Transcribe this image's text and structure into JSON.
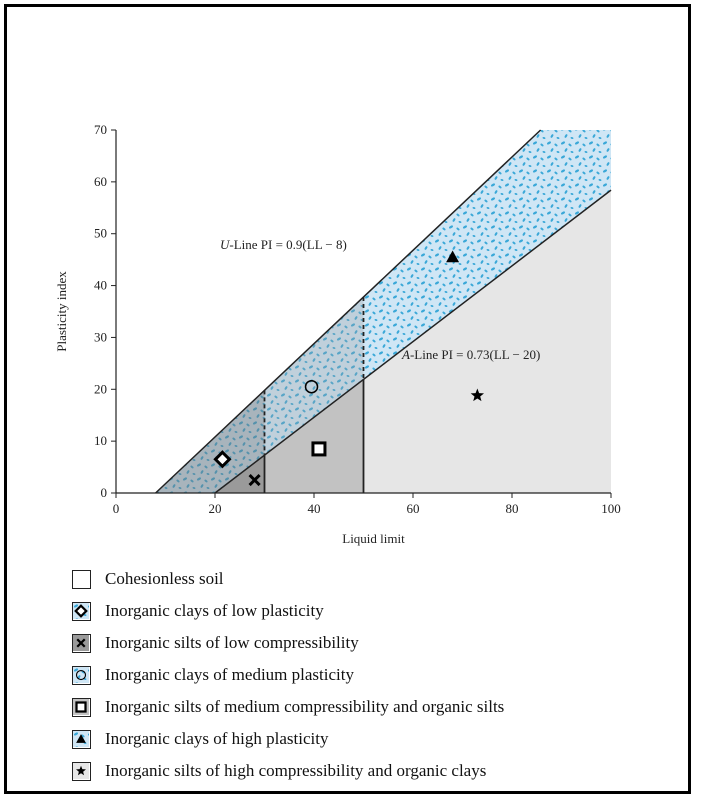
{
  "chart_data": {
    "type": "area",
    "title": "",
    "xlabel": "Liquid limit",
    "ylabel": "Plasticity index",
    "xlim": [
      0,
      100
    ],
    "ylim": [
      0,
      70
    ],
    "xticks": [
      0,
      20,
      40,
      60,
      80,
      100
    ],
    "yticks": [
      0,
      10,
      20,
      30,
      40,
      50,
      60,
      70
    ],
    "grid": false,
    "lines": [
      {
        "id": "u-line",
        "label_prefix": "U",
        "label_rest": "-Line PI = 0.9(LL − 8)",
        "slope": 0.9,
        "intercept_x": 8
      },
      {
        "id": "a-line",
        "label_prefix": "A",
        "label_rest": "-Line PI = 0.73(LL − 20)",
        "slope": 0.73,
        "intercept_x": 20
      }
    ],
    "vertical_lines": [
      30,
      50
    ],
    "regions_colors": {
      "clay_fill": "#cfe6f5",
      "clay_dots": "#3aa8d8",
      "silt_low_fill": "#9a9a9a",
      "silt_med_fill": "#c2c2c2",
      "silt_high_fill": "#e6e6e6"
    },
    "markers": [
      {
        "symbol": "diamond",
        "x": 21.5,
        "y": 6.5
      },
      {
        "symbol": "cross",
        "x": 28,
        "y": 2.5
      },
      {
        "symbol": "circle",
        "x": 39.5,
        "y": 20.5
      },
      {
        "symbol": "square",
        "x": 41,
        "y": 8.5
      },
      {
        "symbol": "triangle",
        "x": 68,
        "y": 45.5
      },
      {
        "symbol": "star",
        "x": 73,
        "y": 18.8
      }
    ]
  },
  "legend": [
    {
      "symbol": "none",
      "label": "Cohesionless soil",
      "swatch": "white"
    },
    {
      "symbol": "diamond",
      "label": "Inorganic clays of low plasticity",
      "swatch": "dotted"
    },
    {
      "symbol": "cross",
      "label": "Inorganic silts of low compressibility",
      "swatch": "gray-dark"
    },
    {
      "symbol": "circle",
      "label": "Inorganic clays of medium plasticity",
      "swatch": "dotted"
    },
    {
      "symbol": "square",
      "label": "Inorganic silts of medium compressibility and organic silts",
      "swatch": "gray-mid"
    },
    {
      "symbol": "triangle",
      "label": "Inorganic clays of high plasticity",
      "swatch": "dotted"
    },
    {
      "symbol": "star",
      "label": "Inorganic silts of high compressibility and organic clays",
      "swatch": "gray-light"
    }
  ]
}
